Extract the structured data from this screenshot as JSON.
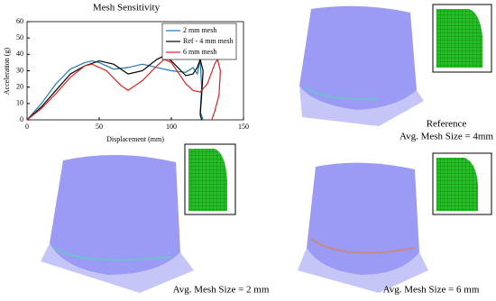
{
  "chart_data": {
    "type": "line",
    "title": "Mesh Sensitivity",
    "xlabel": "Displacement (mm)",
    "ylabel": "Acceleration (g)",
    "xlim": [
      0,
      150
    ],
    "xticks": [
      0,
      50,
      100,
      150
    ],
    "ylim": [
      0,
      60
    ],
    "yticks": [
      0,
      10,
      20,
      30,
      40,
      50,
      60
    ],
    "legend": "upper right",
    "series": [
      {
        "name": "2 mm mesh",
        "color": "#1f77b4",
        "x": [
          0,
          10,
          20,
          30,
          40,
          45,
          50,
          60,
          70,
          80,
          90,
          100,
          110,
          115,
          118,
          120,
          121,
          120,
          122
        ],
        "values": [
          0,
          10,
          22,
          31,
          35,
          36,
          35,
          31,
          32,
          34,
          32,
          30,
          29,
          32,
          28,
          37,
          20,
          5,
          0
        ]
      },
      {
        "name": "Ref - 4 mm mesh",
        "color": "#000000",
        "x": [
          0,
          10,
          20,
          30,
          40,
          50,
          60,
          70,
          80,
          90,
          95,
          100,
          110,
          115,
          118,
          120,
          122,
          121,
          120,
          121
        ],
        "values": [
          0,
          8,
          18,
          28,
          33,
          36,
          34,
          28,
          30,
          37,
          39,
          36,
          27,
          28,
          32,
          37,
          30,
          15,
          3,
          0
        ]
      },
      {
        "name": "6 mm mesh",
        "color": "#e02020",
        "x": [
          0,
          10,
          20,
          30,
          40,
          45,
          55,
          65,
          70,
          80,
          90,
          95,
          100,
          110,
          115,
          120,
          125,
          130,
          132,
          134,
          133,
          130,
          128
        ],
        "values": [
          0,
          7,
          16,
          26,
          33,
          34,
          30,
          21,
          18,
          24,
          33,
          37,
          35,
          22,
          18,
          17,
          22,
          34,
          37,
          30,
          15,
          5,
          0
        ]
      }
    ]
  },
  "panels": [
    {
      "caption": [
        "Reference",
        "Avg. Mesh Size = 4mm"
      ]
    },
    {
      "caption": [
        "Avg. Mesh Size = 2 mm"
      ]
    },
    {
      "caption": [
        "Avg. Mesh Size = 6 mm"
      ]
    }
  ]
}
